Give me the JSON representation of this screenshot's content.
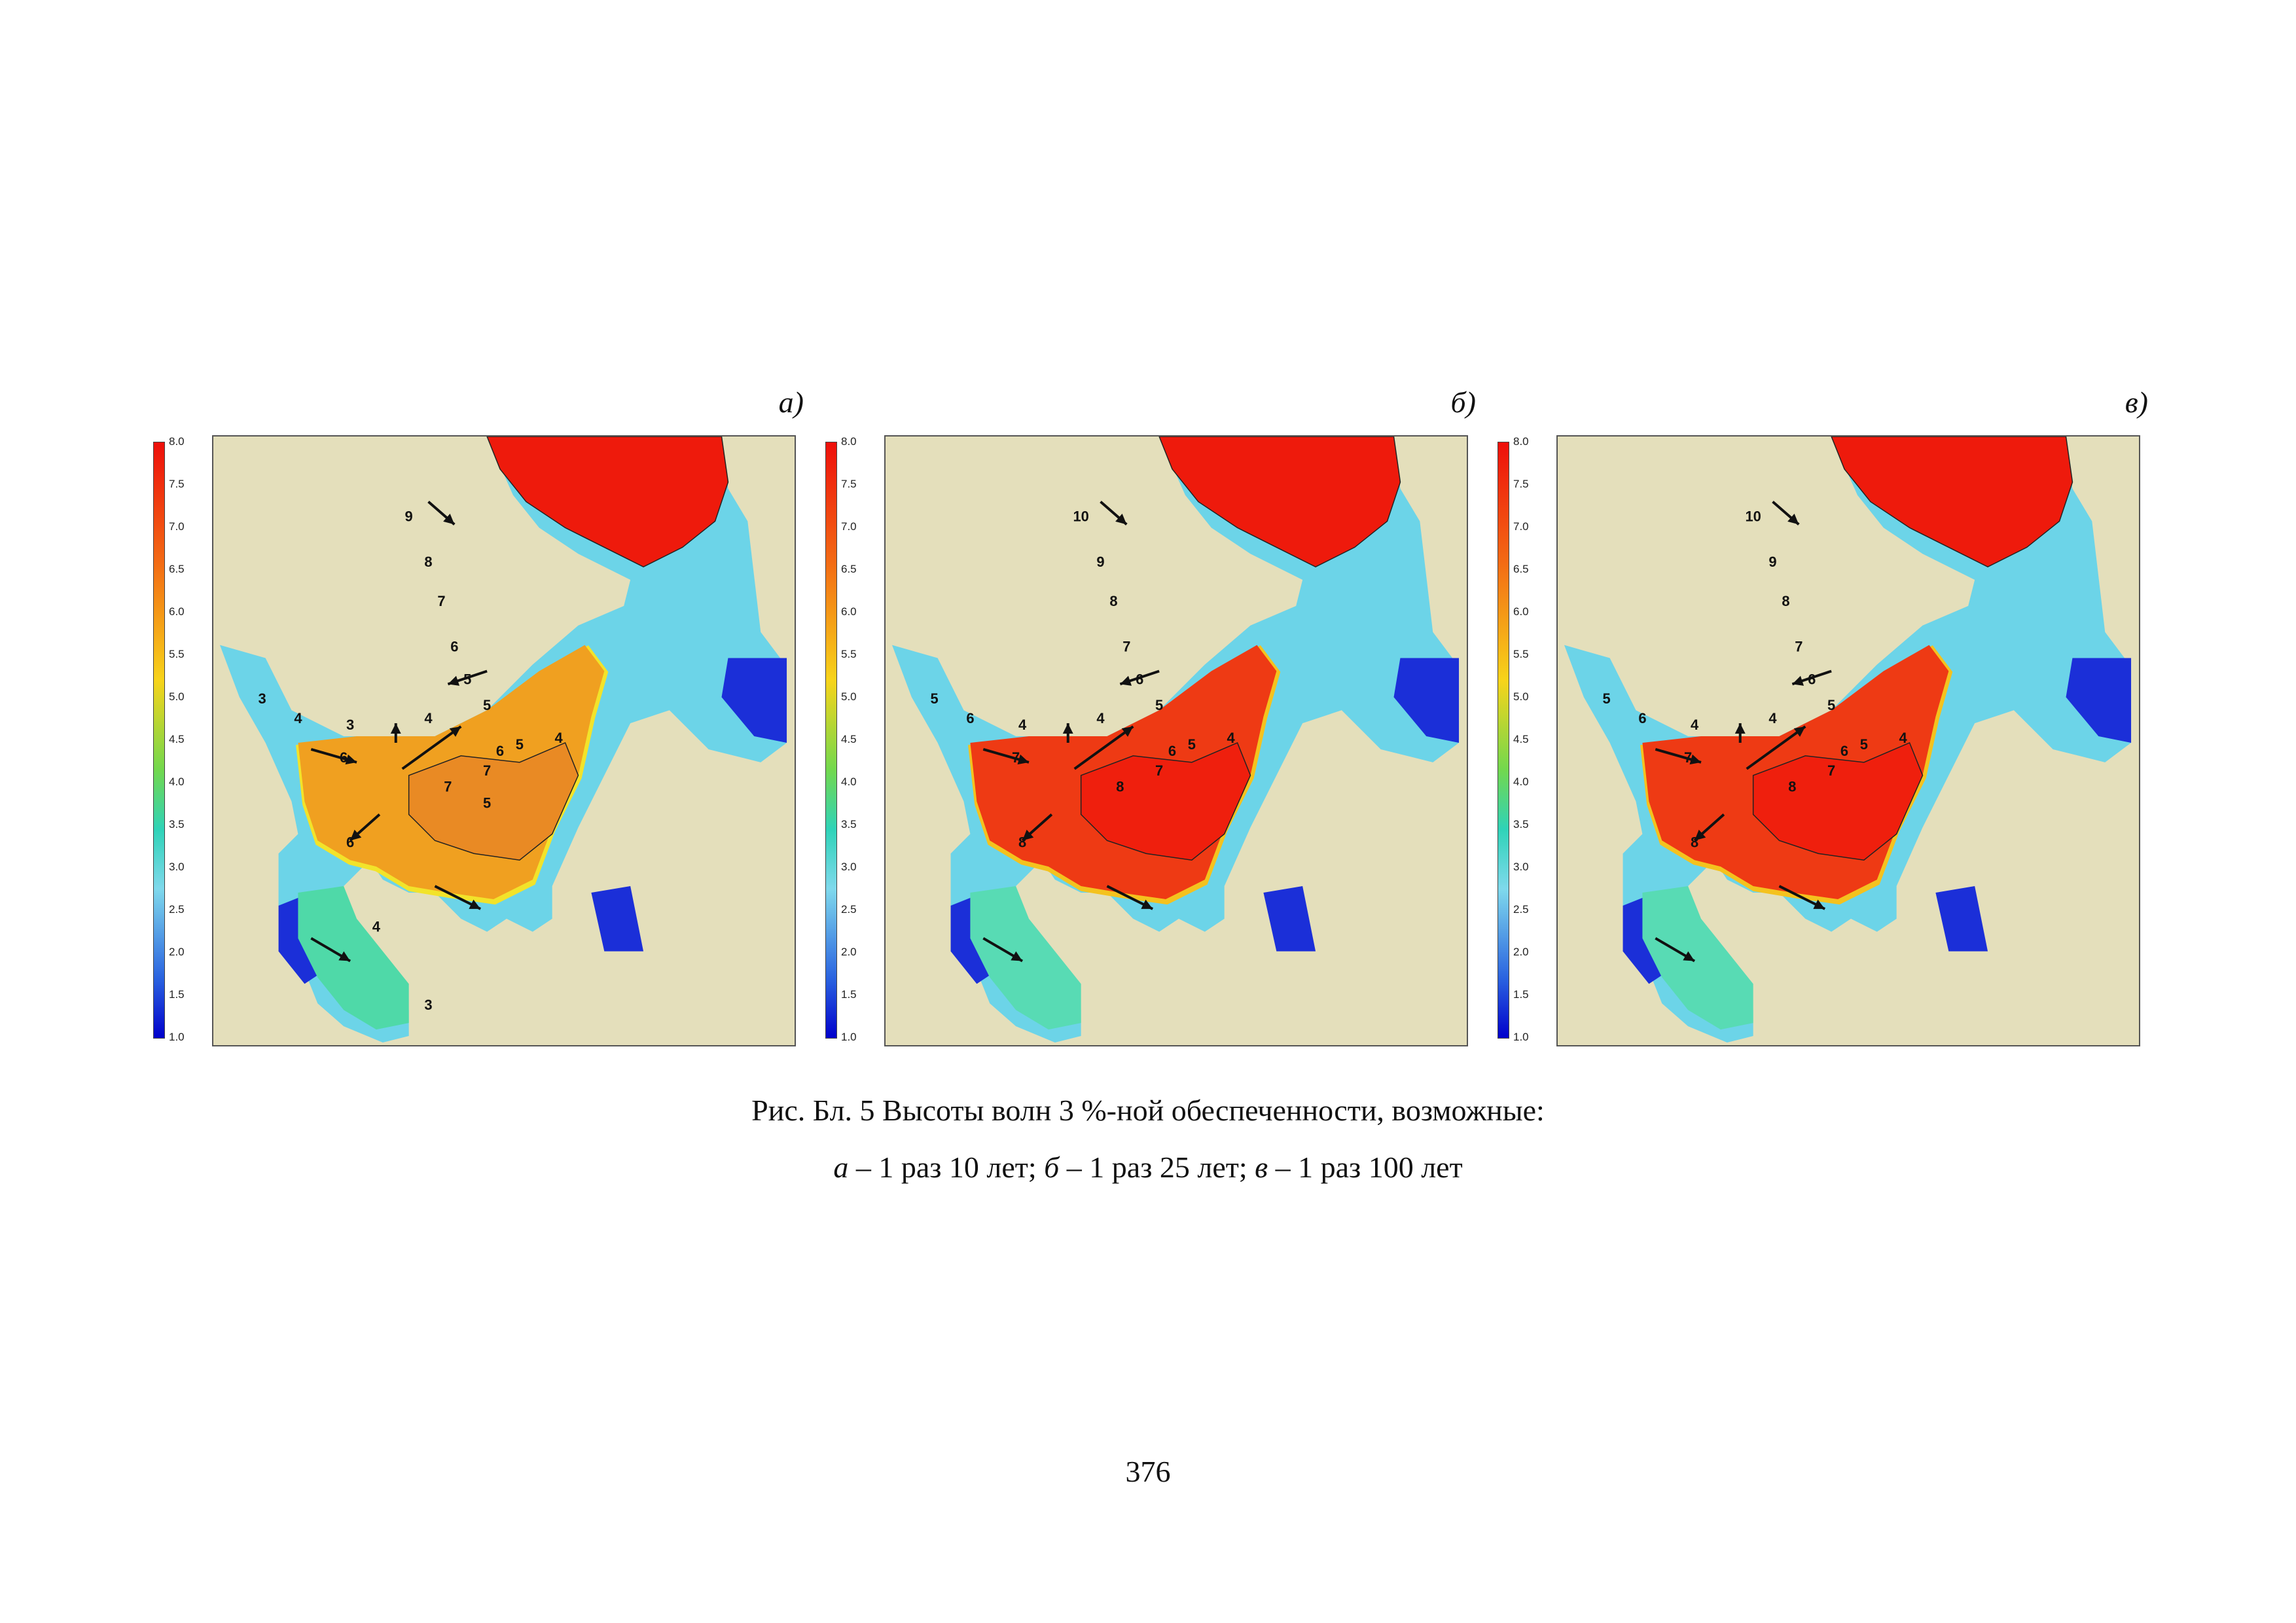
{
  "colorbar": {
    "ticks": [
      "8.0",
      "7.5",
      "7.0",
      "6.5",
      "6.0",
      "5.5",
      "5.0",
      "4.5",
      "4.0",
      "3.5",
      "3.0",
      "2.5",
      "2.0",
      "1.5",
      "1.0"
    ]
  },
  "panels": [
    {
      "id": "a",
      "label": "а)",
      "colors": {
        "north": "#ee1a0c",
        "center": "#f0a020",
        "center_core": "#e98a24",
        "center_fringe": "#f2e32a",
        "south": "#4fd9a8"
      },
      "contour_labels": [
        "9",
        "8",
        "7",
        "6",
        "5",
        "5",
        "4",
        "3",
        "3",
        "4",
        "6",
        "7",
        "6",
        "7",
        "6",
        "5",
        "4",
        "5",
        "4",
        "3"
      ]
    },
    {
      "id": "b",
      "label": "б)",
      "colors": {
        "north": "#ee1a0c",
        "center": "#ee3a14",
        "center_core": "#ef1f0d",
        "center_fringe": "#f4c21e",
        "south": "#58dbb4"
      },
      "contour_labels": [
        "10",
        "9",
        "8",
        "7",
        "6",
        "5",
        "4",
        "4",
        "5",
        "6",
        "7",
        "8",
        "8",
        "7",
        "6",
        "5",
        "4"
      ]
    },
    {
      "id": "c",
      "label": "в)",
      "colors": {
        "north": "#ee1a0c",
        "center": "#ee3a14",
        "center_core": "#ef1f0d",
        "center_fringe": "#f4c21e",
        "south": "#58dbb4"
      },
      "contour_labels": [
        "10",
        "9",
        "8",
        "7",
        "6",
        "5",
        "4",
        "4",
        "5",
        "6",
        "7",
        "8",
        "8",
        "7",
        "6",
        "5",
        "4"
      ]
    }
  ],
  "map_colors": {
    "land": "#e4dfbb",
    "shore_blue": "#1b2fd8",
    "shore_cyan": "#6cd4e8"
  },
  "caption": {
    "line1": "Рис. Бл. 5 Высоты волн 3 %-ной обеспеченности, возможные:",
    "line2_parts": [
      "а",
      " – 1 раз 10 лет; ",
      "б",
      " – 1 раз 25 лет; ",
      "в",
      " – 1 раз 100 лет"
    ]
  },
  "page_number": "376"
}
